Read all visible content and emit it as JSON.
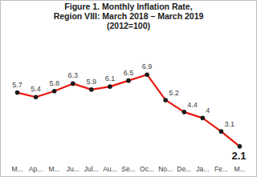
{
  "chart_data": {
    "type": "line",
    "title": "Figure 1. Monthly Inflation Rate,\nRegion VIII: March 2018 – March 2019",
    "subtitle": "(2012=100)",
    "categories": [
      "M...",
      "Ap...",
      "M...",
      "Ju...",
      "Jul...",
      "Au...",
      "Se...",
      "Oc...",
      "No...",
      "De...",
      "Ja...",
      "Fe...",
      "M..."
    ],
    "values": [
      5.7,
      5.4,
      5.8,
      6.3,
      5.9,
      6.1,
      6.5,
      6.9,
      5.2,
      4.4,
      4.0,
      3.1,
      2.1
    ],
    "color": "#e8190f",
    "marker": "circle",
    "ylim": [
      1.5,
      7.5
    ],
    "data_labels": true,
    "tick_labels": "x",
    "grid": false
  }
}
